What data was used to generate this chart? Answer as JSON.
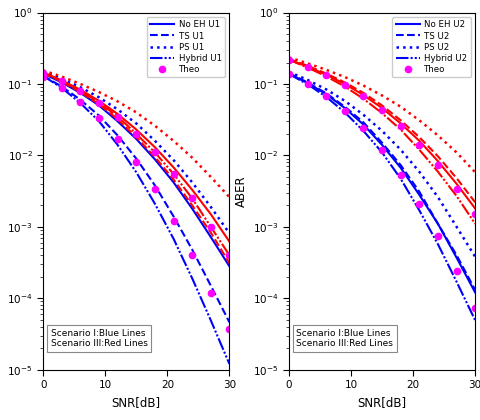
{
  "snr_db": [
    0,
    3,
    6,
    9,
    12,
    15,
    18,
    21,
    24,
    27,
    30
  ],
  "xlim": [
    0,
    30
  ],
  "ylim": [
    1e-05,
    1.0
  ],
  "xlabel": "SNR[dB]",
  "ylabel": "ABER",
  "legend_labels_left": [
    "No EH U1",
    "TS U1",
    "PS U1",
    "Hybrid U1",
    "Theo"
  ],
  "legend_labels_right": [
    "No EH U2",
    "TS U2",
    "PS U2",
    "Hybrid U2",
    "Theo"
  ],
  "scenario_note": "Scenario I:Blue Lines\nScenario III:Red Lines",
  "blue": "#0000FF",
  "red": "#FF0000",
  "magenta": "#FF00FF",
  "u1_s1_noeh": [
    0.14,
    0.105,
    0.075,
    0.05,
    0.03,
    0.017,
    0.0088,
    0.0042,
    0.0018,
    0.00072,
    0.00028
  ],
  "u1_s1_ts": [
    0.13,
    0.092,
    0.06,
    0.036,
    0.019,
    0.009,
    0.0038,
    0.0014,
    0.00048,
    0.00015,
    4.6e-05
  ],
  "u1_s1_ps": [
    0.15,
    0.118,
    0.09,
    0.065,
    0.044,
    0.028,
    0.016,
    0.0086,
    0.0042,
    0.0019,
    0.00081
  ],
  "u1_s1_hybrid": [
    0.13,
    0.088,
    0.054,
    0.03,
    0.014,
    0.0058,
    0.0021,
    0.00068,
    0.00019,
    4.9e-05,
    1.2e-05
  ],
  "u1_s3_noeh": [
    0.145,
    0.112,
    0.083,
    0.058,
    0.038,
    0.023,
    0.013,
    0.0068,
    0.0033,
    0.0015,
    0.00062
  ],
  "u1_s3_ts": [
    0.142,
    0.108,
    0.077,
    0.052,
    0.032,
    0.018,
    0.0095,
    0.0046,
    0.002,
    0.00083,
    0.00031
  ],
  "u1_s3_ps": [
    0.155,
    0.127,
    0.1,
    0.077,
    0.057,
    0.04,
    0.026,
    0.016,
    0.0093,
    0.005,
    0.0026
  ],
  "u1_s3_hybrid": [
    0.145,
    0.11,
    0.08,
    0.055,
    0.035,
    0.02,
    0.011,
    0.0055,
    0.0025,
    0.001,
    0.0004
  ],
  "u1_theo_s1": [
    0.125,
    0.088,
    0.056,
    0.033,
    0.017,
    0.008,
    0.0034,
    0.0012,
    0.0004,
    0.00012,
    3.7e-05
  ],
  "u1_theo_s3": [
    0.143,
    0.109,
    0.079,
    0.054,
    0.034,
    0.02,
    0.011,
    0.0055,
    0.0025,
    0.001,
    0.0004
  ],
  "u2_s1_noeh": [
    0.14,
    0.103,
    0.072,
    0.046,
    0.027,
    0.014,
    0.0067,
    0.0028,
    0.0011,
    0.00037,
    0.00012
  ],
  "u2_s1_ts": [
    0.142,
    0.105,
    0.074,
    0.048,
    0.029,
    0.015,
    0.0073,
    0.0031,
    0.0011,
    0.0004,
    0.00013
  ],
  "u2_s1_ps": [
    0.148,
    0.114,
    0.084,
    0.058,
    0.037,
    0.022,
    0.012,
    0.0059,
    0.0026,
    0.001,
    0.00038
  ],
  "u2_s1_hybrid": [
    0.138,
    0.099,
    0.066,
    0.04,
    0.022,
    0.011,
    0.0047,
    0.0017,
    0.00057,
    0.00017,
    4.9e-05
  ],
  "u2_s3_noeh": [
    0.22,
    0.175,
    0.135,
    0.1,
    0.07,
    0.046,
    0.028,
    0.016,
    0.0083,
    0.004,
    0.0018
  ],
  "u2_s3_ts": [
    0.225,
    0.18,
    0.14,
    0.105,
    0.075,
    0.05,
    0.031,
    0.018,
    0.0097,
    0.0048,
    0.0022
  ],
  "u2_s3_ps": [
    0.235,
    0.195,
    0.158,
    0.125,
    0.095,
    0.069,
    0.048,
    0.031,
    0.019,
    0.011,
    0.0058
  ],
  "u2_s3_hybrid": [
    0.218,
    0.17,
    0.128,
    0.092,
    0.062,
    0.039,
    0.023,
    0.012,
    0.0059,
    0.0027,
    0.0011
  ],
  "u2_theo_s1": [
    0.138,
    0.1,
    0.068,
    0.042,
    0.024,
    0.012,
    0.0054,
    0.0021,
    0.00074,
    0.00024,
    7.4e-05
  ],
  "u2_theo_s3": [
    0.22,
    0.173,
    0.132,
    0.097,
    0.067,
    0.043,
    0.026,
    0.014,
    0.0073,
    0.0034,
    0.0015
  ]
}
